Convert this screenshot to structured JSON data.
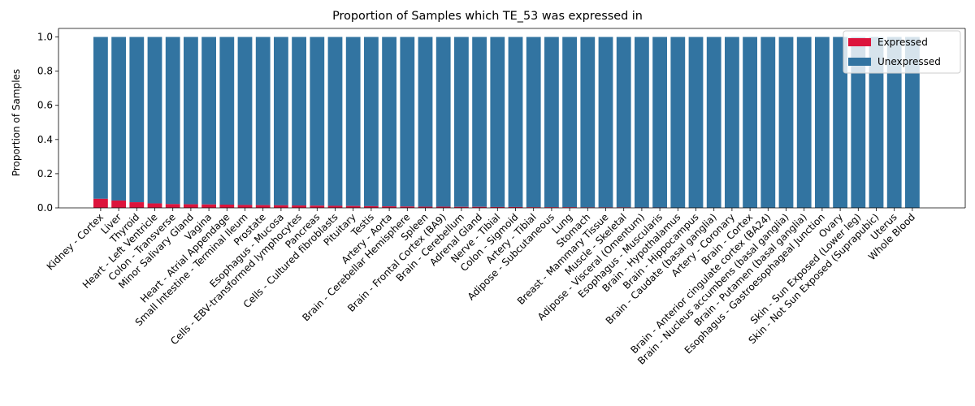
{
  "chart_data": {
    "type": "bar",
    "stacked": true,
    "title": "Proportion of Samples which TE_53 was expressed in",
    "xlabel": "",
    "ylabel": "Proportion of Samples",
    "ylim": [
      0,
      1.05
    ],
    "yticks": [
      "0.0",
      "0.2",
      "0.4",
      "0.6",
      "0.8",
      "1.0"
    ],
    "grid": false,
    "legend_position": "top-right",
    "categories": [
      "Kidney - Cortex",
      "Liver",
      "Thyroid",
      "Heart - Left Ventricle",
      "Colon - Transverse",
      "Minor Salivary Gland",
      "Vagina",
      "Heart - Atrial Appendage",
      "Small Intestine - Terminal Ileum",
      "Prostate",
      "Esophagus - Mucosa",
      "Cells - EBV-transformed lymphocytes",
      "Pancreas",
      "Cells - Cultured fibroblasts",
      "Pituitary",
      "Testis",
      "Artery - Aorta",
      "Brain - Cerebellar Hemisphere",
      "Spleen",
      "Brain - Frontal Cortex (BA9)",
      "Brain - Cerebellum",
      "Adrenal Gland",
      "Nerve - Tibial",
      "Colon - Sigmoid",
      "Artery - Tibial",
      "Adipose - Subcutaneous",
      "Lung",
      "Stomach",
      "Breast - Mammary Tissue",
      "Muscle - Skeletal",
      "Adipose - Visceral (Omentum)",
      "Esophagus - Muscularis",
      "Brain - Hypothalamus",
      "Brain - Hippocampus",
      "Brain - Caudate (basal ganglia)",
      "Artery - Coronary",
      "Brain - Cortex",
      "Brain - Anterior cingulate cortex (BA24)",
      "Brain - Nucleus accumbens (basal ganglia)",
      "Brain - Putamen (basal ganglia)",
      "Esophagus - Gastroesophageal Junction",
      "Ovary",
      "Skin - Sun Exposed (Lower leg)",
      "Skin - Not Sun Exposed (Suprapubic)",
      "Uterus",
      "Whole Blood"
    ],
    "series": [
      {
        "name": "Expressed",
        "color": "#dc143c",
        "values": [
          0.053,
          0.043,
          0.033,
          0.026,
          0.022,
          0.021,
          0.02,
          0.019,
          0.017,
          0.016,
          0.015,
          0.014,
          0.013,
          0.012,
          0.011,
          0.01,
          0.009,
          0.008,
          0.007,
          0.007,
          0.006,
          0.006,
          0.005,
          0.005,
          0.004,
          0.004,
          0.004,
          0.003,
          0.003,
          0.003,
          0.002,
          0.002,
          0.0,
          0.0,
          0.0,
          0.0,
          0.0,
          0.0,
          0.0,
          0.0,
          0.0,
          0.0,
          0.0,
          0.0,
          0.0,
          0.0
        ]
      },
      {
        "name": "Unexpressed",
        "color": "#3274a1",
        "values": [
          0.947,
          0.957,
          0.967,
          0.974,
          0.978,
          0.979,
          0.98,
          0.981,
          0.983,
          0.984,
          0.985,
          0.986,
          0.987,
          0.988,
          0.989,
          0.99,
          0.991,
          0.992,
          0.993,
          0.993,
          0.994,
          0.994,
          0.995,
          0.995,
          0.996,
          0.996,
          0.996,
          0.997,
          0.997,
          0.997,
          0.998,
          0.998,
          1.0,
          1.0,
          1.0,
          1.0,
          1.0,
          1.0,
          1.0,
          1.0,
          1.0,
          1.0,
          1.0,
          1.0,
          1.0,
          1.0
        ]
      }
    ]
  }
}
